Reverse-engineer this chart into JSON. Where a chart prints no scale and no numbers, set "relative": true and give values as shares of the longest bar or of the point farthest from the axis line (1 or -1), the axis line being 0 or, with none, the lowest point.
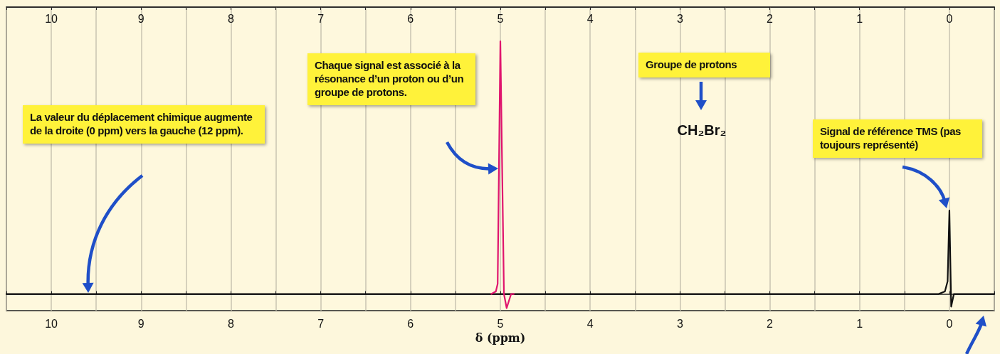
{
  "chart_data": {
    "type": "line",
    "relative": true,
    "xlabel": "δ (ppm)",
    "xlim": [
      10.5,
      -0.5
    ],
    "xticks": [
      10,
      {
        "value": 9.5,
        "label": null
      },
      9,
      {
        "value": 8.5,
        "label": null
      },
      8,
      {
        "value": 7.5,
        "label": null
      },
      7,
      {
        "value": 6.5,
        "label": null
      },
      6,
      {
        "value": 5.5,
        "label": null
      },
      5,
      {
        "value": 4.5,
        "label": null
      },
      4,
      {
        "value": 3.5,
        "label": null
      },
      3,
      {
        "value": 2.5,
        "label": null
      },
      2,
      {
        "value": 1.5,
        "label": null
      },
      1,
      {
        "value": 0.5,
        "label": null
      },
      0
    ],
    "x2lim": [
      10.5,
      -0.5
    ],
    "x2ticks": [
      10,
      {
        "value": 9.5,
        "label": null
      },
      9,
      {
        "value": 8.5,
        "label": null
      },
      8,
      {
        "value": 7.5,
        "label": null
      },
      7,
      {
        "value": 6.5,
        "label": null
      },
      6,
      {
        "value": 5.5,
        "label": null
      },
      5,
      {
        "value": 4.5,
        "label": null
      },
      4,
      {
        "value": 3.5,
        "label": null
      },
      3,
      {
        "value": 2.5,
        "label": null
      },
      2,
      {
        "value": 1.5,
        "label": null
      },
      1,
      {
        "value": 0.5,
        "label": null
      },
      0
    ],
    "grid": "x",
    "line_style": "solid",
    "series": [
      {
        "color": "#111111",
        "x": [
          10.5,
          5.3,
          4.7,
          0.3,
          0.12,
          0.05,
          0.02,
          0.0,
          -0.02,
          -0.05,
          -0.1,
          -0.5
        ],
        "values": [
          0,
          0,
          0,
          0,
          0,
          0.01,
          0.05,
          0.33,
          -0.05,
          0,
          0,
          0
        ]
      },
      {
        "color": "#e0156e",
        "x": [
          5.1,
          5.05,
          5.03,
          5.0,
          4.96,
          4.93,
          4.88,
          4.85
        ],
        "values": [
          0,
          0.01,
          0.04,
          1,
          0,
          -0.056,
          0,
          0
        ]
      }
    ],
    "annotations": [
      "La valeur du déplacement chimique augmente de la droite (0 ppm) vers la gauche (12 ppm).",
      "Chaque signal est associé à la résonance d’un proton ou d’un groupe de protons.",
      "Groupe de protons",
      "CH₂Br₂",
      "Signal de référence TMS (pas toujours représenté)"
    ]
  }
}
